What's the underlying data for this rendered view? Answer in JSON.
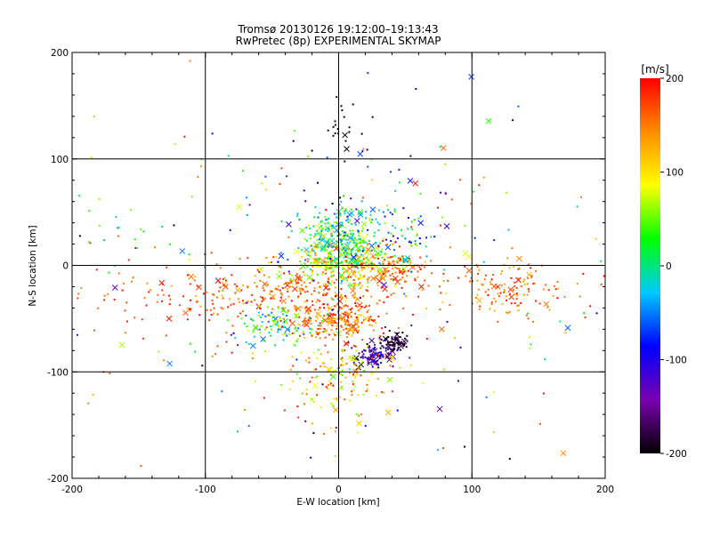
{
  "chart_data": {
    "type": "scatter",
    "title": "Tromsø 20130126 19:12:00–19:13:43",
    "subtitle": "RwPretec (8p) EXPERIMENTAL SKYMAP",
    "xlabel": "E-W location [km]",
    "ylabel": "N-S location [km]",
    "xlim": [
      -200,
      200
    ],
    "ylim": [
      -200,
      200
    ],
    "xticks": [
      -200,
      -100,
      0,
      100,
      200
    ],
    "yticks": [
      -200,
      -100,
      0,
      100,
      200
    ],
    "grid": true,
    "colorbar": {
      "label": "[m/s]",
      "range": [
        -200,
        200
      ],
      "ticks": [
        -200,
        -100,
        0,
        100,
        200
      ],
      "colors": [
        "#000000",
        "#7a00b0",
        "#0000ff",
        "#00c8ff",
        "#00ff00",
        "#ffff00",
        "#ff8c00",
        "#ff0000"
      ]
    },
    "markers": {
      "dot": "small point echo",
      "cross": "x echo"
    },
    "clusters": [
      {
        "x": 0,
        "y": 22,
        "sx": 14,
        "sy": 16,
        "n": 320,
        "v": [
          -60,
          80
        ]
      },
      {
        "x": 5,
        "y": 0,
        "sx": 22,
        "sy": 10,
        "n": 220,
        "v": [
          30,
          160
        ]
      },
      {
        "x": -30,
        "y": -25,
        "sx": 40,
        "sy": 12,
        "n": 220,
        "v": [
          120,
          200
        ]
      },
      {
        "x": 0,
        "y": -52,
        "sx": 14,
        "sy": 10,
        "n": 220,
        "v": [
          100,
          200
        ]
      },
      {
        "x": 38,
        "y": -2,
        "sx": 18,
        "sy": 12,
        "n": 120,
        "v": [
          130,
          200
        ]
      },
      {
        "x": 28,
        "y": -85,
        "sx": 7,
        "sy": 6,
        "n": 110,
        "v": [
          -200,
          -80
        ]
      },
      {
        "x": 42,
        "y": -72,
        "sx": 4,
        "sy": 4,
        "n": 70,
        "v": [
          -200,
          -170
        ]
      },
      {
        "x": -45,
        "y": -55,
        "sx": 14,
        "sy": 8,
        "n": 90,
        "v": [
          -60,
          80
        ]
      },
      {
        "x": 0,
        "y": -105,
        "sx": 25,
        "sy": 22,
        "n": 160,
        "v": [
          40,
          200
        ]
      },
      {
        "x": 135,
        "y": -25,
        "sx": 28,
        "sy": 15,
        "n": 130,
        "v": [
          120,
          200
        ]
      },
      {
        "x": 35,
        "y": 30,
        "sx": 25,
        "sy": 18,
        "n": 110,
        "v": [
          -120,
          100
        ]
      },
      {
        "x": -120,
        "y": -30,
        "sx": 40,
        "sy": 25,
        "n": 90,
        "v": [
          140,
          200
        ]
      },
      {
        "x": 0,
        "y": 0,
        "sx": 100,
        "sy": 95,
        "n": 230,
        "v": [
          -200,
          200
        ]
      },
      {
        "x": 0,
        "y": 130,
        "sx": 12,
        "sy": 16,
        "n": 22,
        "v": [
          -200,
          -180
        ]
      },
      {
        "x": -160,
        "y": 30,
        "sx": 20,
        "sy": 20,
        "n": 20,
        "v": [
          -20,
          60
        ]
      }
    ]
  }
}
